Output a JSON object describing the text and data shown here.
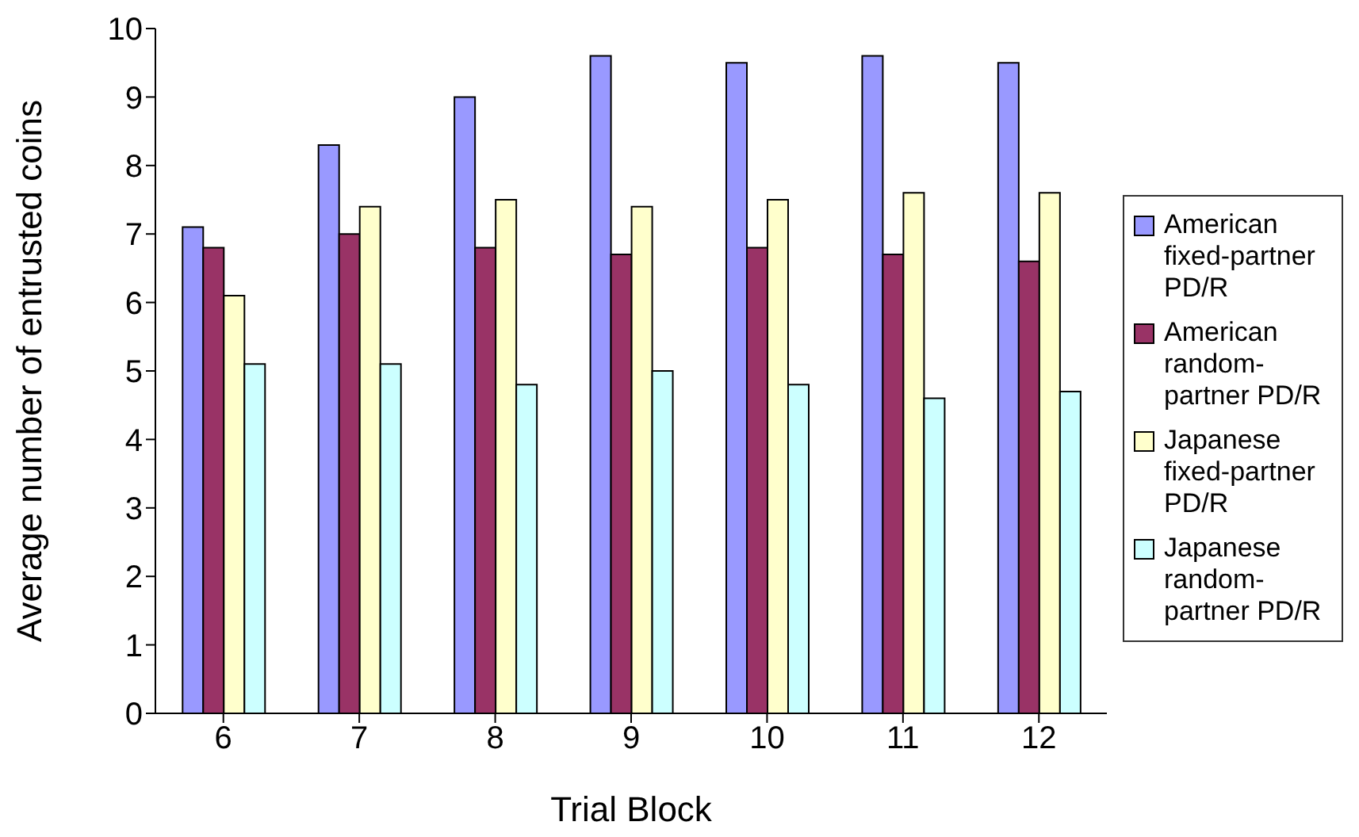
{
  "chart_data": {
    "type": "bar",
    "xlabel": "Trial Block",
    "ylabel": "Average number of entrusted coins",
    "categories": [
      "6",
      "7",
      "8",
      "9",
      "10",
      "11",
      "12"
    ],
    "series": [
      {
        "name": "American fixed-partner PD/R",
        "color": "#9999ff",
        "values": [
          7.1,
          8.3,
          9.0,
          9.6,
          9.5,
          9.6,
          9.5
        ]
      },
      {
        "name": "American random-partner PD/R",
        "color": "#993366",
        "values": [
          6.8,
          7.0,
          6.8,
          6.7,
          6.8,
          6.7,
          6.6
        ]
      },
      {
        "name": "Japanese fixed-partner PD/R",
        "color": "#ffffcc",
        "values": [
          6.1,
          7.4,
          7.5,
          7.4,
          7.5,
          7.6,
          7.6
        ]
      },
      {
        "name": "Japanese random-partner PD/R",
        "color": "#ccffff",
        "values": [
          5.1,
          5.1,
          4.8,
          5.0,
          4.8,
          4.6,
          4.7
        ]
      }
    ],
    "ylim": [
      0,
      10
    ],
    "yticks": [
      0,
      1,
      2,
      3,
      4,
      5,
      6,
      7,
      8,
      9,
      10
    ],
    "grid": false,
    "legend": "right"
  }
}
